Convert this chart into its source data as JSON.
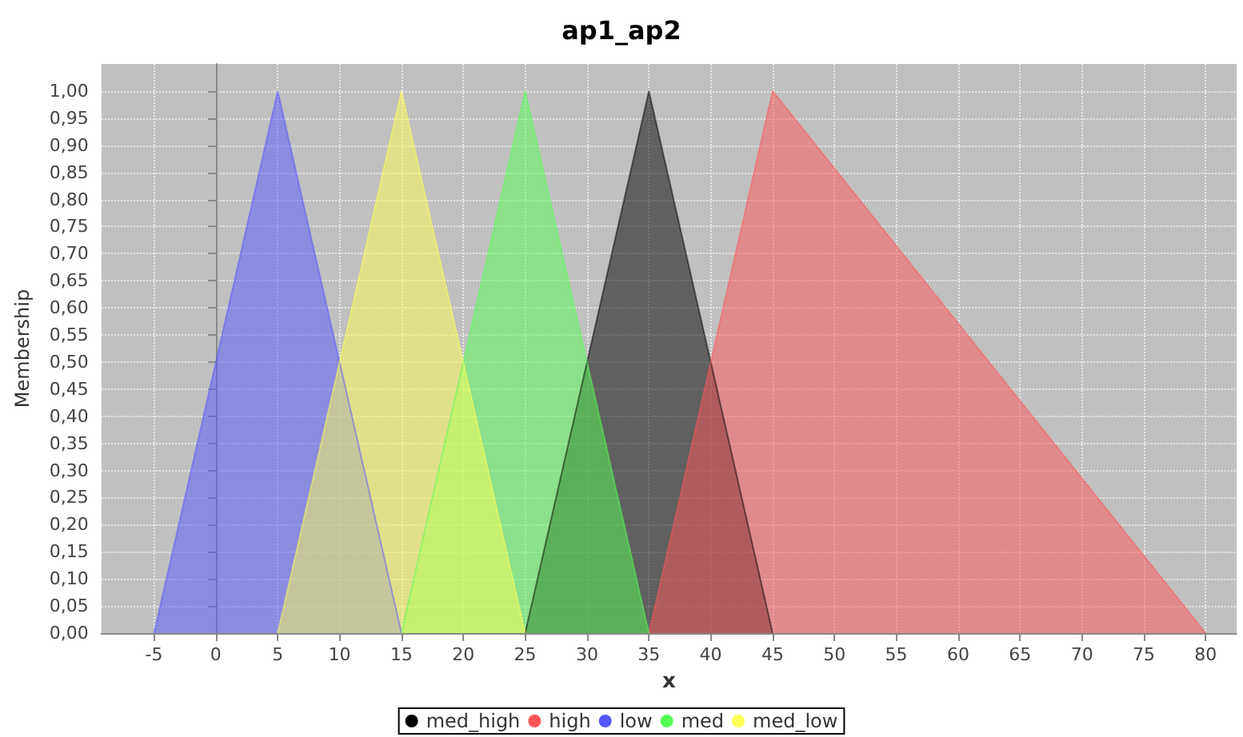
{
  "chart_data": {
    "type": "area",
    "title": "ap1_ap2",
    "xlabel": "x",
    "ylabel": "Membership",
    "series": [
      {
        "name": "med_high",
        "color": "#000000",
        "x": [
          25,
          35,
          45
        ],
        "values": [
          0,
          1,
          0
        ]
      },
      {
        "name": "high",
        "color": "#ff5555",
        "x": [
          35,
          45,
          80
        ],
        "values": [
          0,
          1,
          0
        ]
      },
      {
        "name": "low",
        "color": "#5555ff",
        "x": [
          -5,
          5,
          15
        ],
        "values": [
          0,
          1,
          0
        ]
      },
      {
        "name": "med",
        "color": "#55ff55",
        "x": [
          15,
          25,
          35
        ],
        "values": [
          0,
          1,
          0
        ]
      },
      {
        "name": "med_low",
        "color": "#ffff55",
        "x": [
          5,
          15,
          25
        ],
        "values": [
          0,
          1,
          0
        ]
      }
    ],
    "xlim": [
      -9.25,
      82.5
    ],
    "xticks": [
      -5,
      0,
      5,
      10,
      15,
      20,
      25,
      30,
      35,
      40,
      45,
      50,
      55,
      60,
      65,
      70,
      75,
      80
    ],
    "ylim": [
      0,
      1.05
    ],
    "yticks": [
      {
        "value": 0,
        "label": "0,00"
      },
      {
        "value": 0.05,
        "label": "0,05"
      },
      {
        "value": 0.1,
        "label": "0,10"
      },
      {
        "value": 0.15,
        "label": "0,15"
      },
      {
        "value": 0.2,
        "label": "0,20"
      },
      {
        "value": 0.25,
        "label": "0,25"
      },
      {
        "value": 0.3,
        "label": "0,30"
      },
      {
        "value": 0.35,
        "label": "0,35"
      },
      {
        "value": 0.4,
        "label": "0,40"
      },
      {
        "value": 0.45,
        "label": "0,45"
      },
      {
        "value": 0.5,
        "label": "0,50"
      },
      {
        "value": 0.55,
        "label": "0,55"
      },
      {
        "value": 0.6,
        "label": "0,60"
      },
      {
        "value": 0.65,
        "label": "0,65"
      },
      {
        "value": 0.7,
        "label": "0,70"
      },
      {
        "value": 0.75,
        "label": "0,75"
      },
      {
        "value": 0.8,
        "label": "0,80"
      },
      {
        "value": 0.85,
        "label": "0,85"
      },
      {
        "value": 0.9,
        "label": "0,90"
      },
      {
        "value": 0.95,
        "label": "0,95"
      },
      {
        "value": 1,
        "label": "1,00"
      }
    ],
    "grid": true,
    "legend": "bottom",
    "marker": "none"
  }
}
